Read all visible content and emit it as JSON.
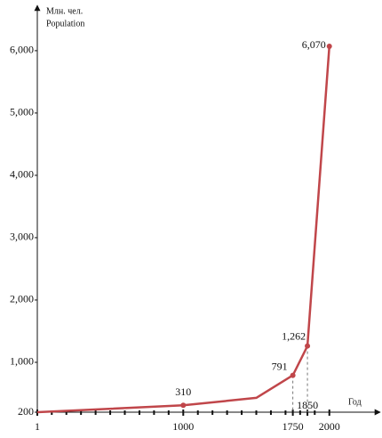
{
  "chart_data": {
    "type": "line",
    "y_label_top": "Млн. чел.",
    "y_label": "Population",
    "x_label": "Год",
    "x": [
      1,
      1000,
      1500,
      1750,
      1850,
      2000
    ],
    "series": [
      {
        "name": "Population",
        "color": "#c0464a",
        "values": [
          200,
          310,
          430,
          791,
          1262,
          6070
        ],
        "value_labels": [
          null,
          "310",
          null,
          "791",
          "1,262",
          "6,070"
        ]
      }
    ],
    "xlim": [
      1,
      2330
    ],
    "xticks": [
      1,
      1000,
      1750,
      1850,
      2000
    ],
    "xminorticks": [
      100,
      200,
      300,
      400,
      500,
      600,
      700,
      800,
      900,
      1100,
      1200,
      1300,
      1400,
      1500,
      1600,
      1700,
      1800,
      1900
    ],
    "ylim": [
      200,
      6670
    ],
    "yticks": [
      200,
      {
        "value": 1000,
        "label": "1,000"
      },
      {
        "value": 2000,
        "label": "2,000"
      },
      {
        "value": 3000,
        "label": "3,000"
      },
      {
        "value": 4000,
        "label": "4,000"
      },
      {
        "value": 5000,
        "label": "5,000"
      },
      {
        "value": 6000,
        "label": "6,000"
      }
    ]
  }
}
